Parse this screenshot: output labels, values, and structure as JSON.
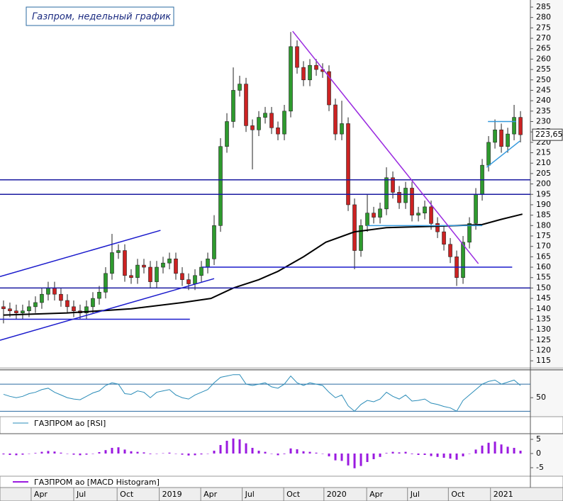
{
  "chart_data": [
    {
      "type": "candlestick",
      "title": "Газпром, недельный график",
      "open": [
        141,
        140,
        139,
        138,
        139,
        141,
        143,
        147,
        150,
        147,
        144,
        141,
        139,
        138,
        141,
        145,
        148,
        157,
        167,
        168,
        156,
        155,
        161,
        160,
        153,
        160,
        162,
        164,
        157,
        154,
        152,
        156,
        160,
        164,
        180,
        218,
        230,
        245,
        248,
        228,
        226,
        232,
        234,
        227,
        224,
        235,
        266,
        256,
        250,
        257,
        255,
        254,
        238,
        224,
        229,
        190,
        168,
        180,
        186,
        184,
        188,
        203,
        196,
        191,
        198,
        185,
        186,
        189,
        181,
        177,
        171,
        165,
        155,
        172,
        181,
        195,
        209,
        220,
        226,
        218,
        224,
        232
      ],
      "high": [
        144,
        143,
        142,
        142,
        144,
        146,
        150,
        153,
        153,
        150,
        147,
        144,
        142,
        144,
        148,
        151,
        160,
        176,
        171,
        171,
        159,
        164,
        164,
        163,
        163,
        165,
        167,
        167,
        160,
        157,
        159,
        163,
        167,
        185,
        222,
        234,
        256,
        252,
        251,
        231,
        235,
        237,
        237,
        230,
        238,
        273,
        269,
        259,
        260,
        260,
        258,
        257,
        241,
        240,
        232,
        193,
        183,
        195,
        189,
        191,
        208,
        206,
        199,
        201,
        201,
        189,
        192,
        192,
        184,
        180,
        174,
        168,
        175,
        184,
        198,
        212,
        223,
        231,
        229,
        227,
        238,
        235
      ],
      "low": [
        133,
        136,
        135,
        135,
        136,
        138,
        140,
        144,
        144,
        141,
        138,
        136,
        135,
        135,
        138,
        142,
        145,
        154,
        164,
        153,
        152,
        152,
        157,
        150,
        150,
        157,
        159,
        154,
        151,
        149,
        149,
        153,
        157,
        161,
        177,
        215,
        227,
        242,
        225,
        207,
        223,
        229,
        224,
        221,
        221,
        232,
        253,
        247,
        247,
        252,
        251,
        235,
        221,
        221,
        187,
        159,
        165,
        177,
        181,
        181,
        185,
        193,
        188,
        188,
        182,
        182,
        183,
        178,
        174,
        168,
        162,
        151,
        152,
        169,
        178,
        192,
        206,
        217,
        215,
        215,
        221,
        220
      ],
      "close": [
        140,
        139,
        138,
        139,
        141,
        143,
        147,
        150,
        147,
        144,
        141,
        139,
        138,
        141,
        145,
        148,
        157,
        167,
        168,
        156,
        155,
        161,
        160,
        153,
        160,
        162,
        164,
        157,
        154,
        152,
        156,
        160,
        164,
        180,
        218,
        230,
        245,
        248,
        228,
        226,
        232,
        234,
        227,
        224,
        235,
        266,
        256,
        250,
        257,
        255,
        254,
        238,
        224,
        229,
        190,
        168,
        180,
        186,
        184,
        188,
        203,
        196,
        191,
        198,
        185,
        186,
        189,
        181,
        177,
        171,
        165,
        155,
        172,
        181,
        195,
        209,
        220,
        226,
        218,
        224,
        232,
        223.65
      ],
      "last_label": "223,65",
      "up_color": "#2e9a2e",
      "down_color": "#cc2222",
      "ma": {
        "x": [
          0,
          10,
          20,
          28,
          32.5,
          36,
          40,
          43,
          47,
          50.5,
          55,
          60,
          66,
          71,
          75,
          78,
          81.3
        ],
        "values": [
          137,
          138,
          140,
          143,
          145,
          150,
          154,
          158,
          165,
          172,
          177,
          179,
          179.5,
          180,
          180.5,
          183,
          185.5
        ],
        "color": "#000000"
      },
      "lines": [
        {
          "x": [
            -0.55,
            82.55
          ],
          "y": [
            202,
            202
          ],
          "color": "#1a1aa0"
        },
        {
          "x": [
            -0.55,
            82.55
          ],
          "y": [
            195,
            195
          ],
          "color": "#1a1aa0"
        },
        {
          "x": [
            -0.55,
            82.55
          ],
          "y": [
            150,
            150
          ],
          "color": "#1a1aa0"
        },
        {
          "x": [
            31.1,
            79.7
          ],
          "y": [
            160,
            160
          ],
          "color": "#1a1acc"
        },
        {
          "x": [
            57,
            75
          ],
          "y": [
            180,
            180
          ],
          "color": "#3399dd"
        },
        {
          "x": [
            45.3,
            74.4
          ],
          "y": [
            273.4,
            161.7
          ],
          "color": "#9a2ae0"
        },
        {
          "x": [
            -0.55,
            24.6
          ],
          "y": [
            155.5,
            177.7
          ],
          "color": "#1a1acc"
        },
        {
          "x": [
            -0.55,
            33
          ],
          "y": [
            124.9,
            154.5
          ],
          "color": "#1a1acc"
        },
        {
          "x": [
            -0.55,
            29.2
          ],
          "y": [
            135,
            135
          ],
          "color": "#1a1acc"
        },
        {
          "x": [
            75.9,
            80.3
          ],
          "y": [
            230,
            230
          ],
          "color": "#3399dd"
        },
        {
          "x": [
            75.7,
            80.9
          ],
          "y": [
            208,
            220.6
          ],
          "color": "#3399dd"
        }
      ],
      "xlim": [
        -0.55,
        82.55
      ],
      "ylim": [
        112,
        288.4
      ],
      "yticks": [
        115,
        120,
        125,
        130,
        135,
        140,
        145,
        150,
        155,
        160,
        165,
        170,
        175,
        180,
        185,
        190,
        195,
        200,
        205,
        210,
        215,
        220,
        225,
        230,
        235,
        240,
        245,
        250,
        255,
        260,
        265,
        270,
        275,
        280,
        285
      ]
    },
    {
      "type": "line",
      "series": [
        {
          "name": "ГАЗПРОМ ао [RSI]",
          "color": "#2a8cb8",
          "values": [
            55,
            52,
            50,
            52,
            56,
            58,
            62,
            64,
            58,
            54,
            50,
            48,
            47,
            52,
            57,
            60,
            68,
            72,
            70,
            56,
            55,
            60,
            58,
            50,
            58,
            60,
            62,
            54,
            50,
            48,
            54,
            58,
            62,
            72,
            80,
            82,
            84,
            84,
            70,
            68,
            70,
            72,
            66,
            64,
            70,
            82,
            72,
            68,
            72,
            70,
            68,
            58,
            50,
            54,
            38,
            30,
            40,
            46,
            44,
            48,
            58,
            52,
            48,
            54,
            45,
            46,
            48,
            42,
            40,
            37,
            35,
            30,
            46,
            54,
            62,
            70,
            74,
            76,
            70,
            73,
            76,
            68
          ]
        }
      ],
      "levels": [
        70,
        30
      ],
      "xlim": [
        -0.55,
        82.55
      ],
      "ylim": [
        22,
        91
      ],
      "yticks": [
        50
      ]
    },
    {
      "type": "bar",
      "series": [
        {
          "name": "ГАЗПРОМ ао [MACD Histogram]",
          "color": "#9a1ae0",
          "values": [
            -0.3,
            -0.5,
            -0.6,
            -0.4,
            -0.1,
            0.2,
            0.6,
            0.9,
            0.7,
            0.3,
            -0.1,
            -0.4,
            -0.6,
            -0.4,
            0,
            0.5,
            1.2,
            2,
            2.2,
            1.4,
            0.8,
            0.6,
            0.4,
            -0.2,
            -0.1,
            0.1,
            0.3,
            0,
            -0.4,
            -0.7,
            -0.6,
            -0.3,
            0,
            1,
            3,
            4.5,
            5.3,
            5,
            3.6,
            2,
            1,
            0.6,
            -0.1,
            -0.6,
            -0.2,
            1.8,
            1.5,
            0.8,
            0.6,
            0.3,
            0,
            -1,
            -2.4,
            -2.6,
            -4.2,
            -5.2,
            -4.4,
            -3,
            -2,
            -1.2,
            0.2,
            0.6,
            0.4,
            0.6,
            -0.2,
            -0.5,
            -0.5,
            -0.9,
            -1.2,
            -1.5,
            -1.8,
            -2.2,
            -1,
            0,
            1.4,
            2.8,
            3.8,
            4.2,
            3.2,
            2.4,
            2,
            1
          ]
        }
      ],
      "xlim": [
        -0.55,
        82.55
      ],
      "ylim": [
        -8,
        7
      ],
      "yticks": [
        5,
        0,
        -5
      ],
      "xticks": [
        {
          "value": 4.33,
          "label": "Apr"
        },
        {
          "value": 11,
          "label": "Jul"
        },
        {
          "value": 17.8,
          "label": "Oct"
        },
        {
          "value": 24.4,
          "label": "2019"
        },
        {
          "value": 30.9,
          "label": "Apr"
        },
        {
          "value": 37.4,
          "label": "Jul"
        },
        {
          "value": 43.9,
          "label": "Oct"
        },
        {
          "value": 50.2,
          "label": "2020"
        },
        {
          "value": 56.9,
          "label": "Apr"
        },
        {
          "value": 63.3,
          "label": "Jul"
        },
        {
          "value": 69.7,
          "label": "Oct"
        },
        {
          "value": 76.3,
          "label": "2021"
        }
      ]
    }
  ]
}
